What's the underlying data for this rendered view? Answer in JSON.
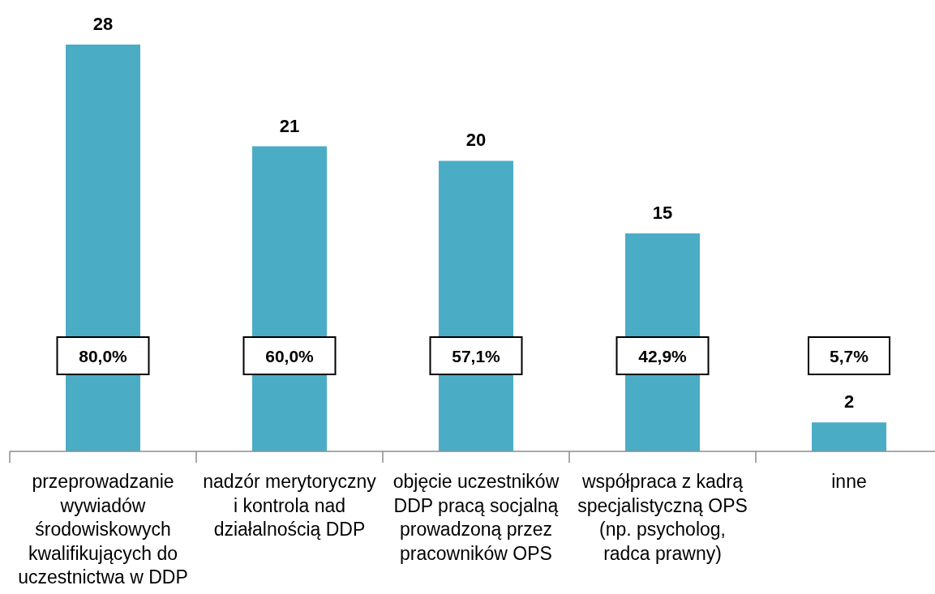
{
  "chart_data": {
    "type": "bar",
    "categories": [
      "przeprowadzanie wywiadów środowiskowych kwalifikujących do uczestnictwa w DDP",
      "nadzór merytoryczny i kontrola nad działalnością DDP",
      "objęcie uczestników DDP pracą socjalną prowadzoną przez pracowników OPS",
      "współpraca z kadrą specjalistyczną OPS (np. psycholog, radca prawny)",
      "inne"
    ],
    "values": [
      28,
      21,
      20,
      15,
      2
    ],
    "color": "#4bacc6",
    "data_labels": true,
    "annotations": [
      "80,0%",
      "60,0%",
      "57,1%",
      "42,9%",
      "5,7%"
    ]
  }
}
